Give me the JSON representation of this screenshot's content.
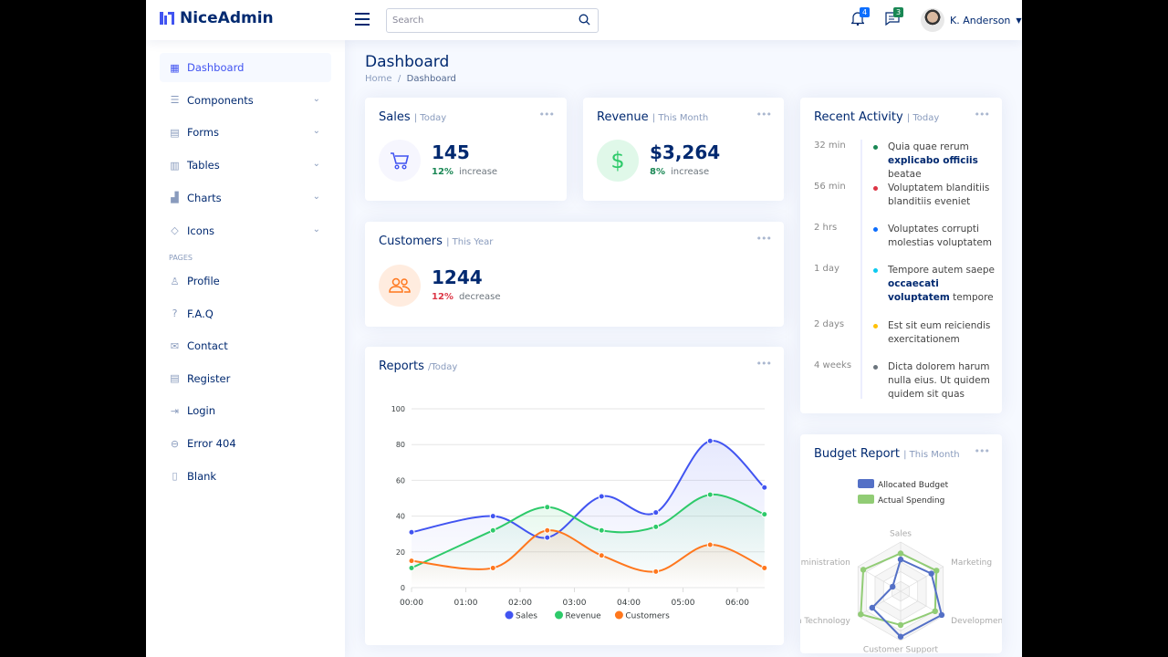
{
  "header": {
    "brand": "NiceAdmin",
    "search_placeholder": "Search",
    "notifications_count": "4",
    "messages_count": "3",
    "user_name": "K. Anderson",
    "colors": {
      "accent": "#4154f1",
      "notif_badge": "#0d6efd",
      "msg_badge": "#198754"
    }
  },
  "sidebar": {
    "items": [
      {
        "label": "Dashboard",
        "icon": "grid-icon",
        "active": true
      },
      {
        "label": "Components",
        "icon": "menu-icon",
        "chevron": true
      },
      {
        "label": "Forms",
        "icon": "journal-icon",
        "chevron": true
      },
      {
        "label": "Tables",
        "icon": "table-icon",
        "chevron": true
      },
      {
        "label": "Charts",
        "icon": "bar-chart-icon",
        "chevron": true
      },
      {
        "label": "Icons",
        "icon": "gem-icon",
        "chevron": true
      }
    ],
    "pages_heading": "PAGES",
    "pages": [
      {
        "label": "Profile",
        "icon": "person-icon"
      },
      {
        "label": "F.A.Q",
        "icon": "question-icon"
      },
      {
        "label": "Contact",
        "icon": "envelope-icon"
      },
      {
        "label": "Register",
        "icon": "card-list-icon"
      },
      {
        "label": "Login",
        "icon": "login-icon"
      },
      {
        "label": "Error 404",
        "icon": "dash-circle-icon"
      },
      {
        "label": "Blank",
        "icon": "file-icon"
      }
    ]
  },
  "page": {
    "title": "Dashboard",
    "breadcrumb": [
      "Home",
      "Dashboard"
    ]
  },
  "sales": {
    "title": "Sales",
    "period": "| Today",
    "value": "145",
    "pct": "12%",
    "trend": "increase"
  },
  "revenue": {
    "title": "Revenue",
    "period": "| This Month",
    "value": "$3,264",
    "pct": "8%",
    "trend": "increase"
  },
  "customers": {
    "title": "Customers",
    "period": "| This Year",
    "value": "1244",
    "pct": "12%",
    "trend": "decrease"
  },
  "activity": {
    "title": "Recent Activity",
    "period": "| Today",
    "items": [
      {
        "time": "32 min",
        "color": "#198754",
        "pre": "Quia quae rerum ",
        "bold": "explicabo officiis",
        "post": " beatae"
      },
      {
        "time": "56 min",
        "color": "#dc3545",
        "pre": "Voluptatem blanditiis blanditiis eveniet",
        "bold": "",
        "post": ""
      },
      {
        "time": "2 hrs",
        "color": "#0d6efd",
        "pre": "Voluptates corrupti molestias voluptatem",
        "bold": "",
        "post": ""
      },
      {
        "time": "1 day",
        "color": "#0dcaf0",
        "pre": "Tempore autem saepe ",
        "bold": "occaecati voluptatem",
        "post": " tempore"
      },
      {
        "time": "2 days",
        "color": "#ffc107",
        "pre": "Est sit eum reiciendis exercitationem",
        "bold": "",
        "post": ""
      },
      {
        "time": "4 weeks",
        "color": "#6c757d",
        "pre": "Dicta dolorem harum nulla eius. Ut quidem quidem sit quas",
        "bold": "",
        "post": ""
      }
    ]
  },
  "reports": {
    "title": "Reports",
    "period": "/Today"
  },
  "budget": {
    "title": "Budget Report",
    "period": "| This Month"
  },
  "chart_data": [
    {
      "type": "line",
      "x": [
        0,
        1.5,
        2.5,
        3.5,
        4.5,
        5.5,
        6.5
      ],
      "xticks": [
        "00:00",
        "01:00",
        "02:00",
        "03:00",
        "04:00",
        "05:00",
        "06:00"
      ],
      "yticks": [
        0,
        20,
        40,
        60,
        80,
        100
      ],
      "ylim": [
        0,
        100
      ],
      "grid": true,
      "legend": "bottom",
      "series": [
        {
          "name": "Sales",
          "color": "#4154f1",
          "values": [
            31,
            40,
            28,
            51,
            42,
            82,
            56
          ]
        },
        {
          "name": "Revenue",
          "color": "#2eca6a",
          "values": [
            11,
            32,
            45,
            32,
            34,
            52,
            41
          ]
        },
        {
          "name": "Customers",
          "color": "#ff771d",
          "values": [
            15,
            11,
            32,
            18,
            9,
            24,
            11
          ]
        }
      ]
    },
    {
      "type": "radar",
      "legend": "top",
      "indicators": [
        {
          "name": "Sales",
          "max": 6500
        },
        {
          "name": "Administration",
          "max": 16000
        },
        {
          "name": "Information Technology",
          "max": 30000
        },
        {
          "name": "Customer Support",
          "max": 38000
        },
        {
          "name": "Development",
          "max": 52000
        },
        {
          "name": "Marketing",
          "max": 25000
        }
      ],
      "series": [
        {
          "name": "Allocated Budget",
          "color": "#5470c6",
          "values": [
            4200,
            3000,
            20000,
            35000,
            50000,
            18000
          ]
        },
        {
          "name": "Actual Spending",
          "color": "#91cc75",
          "values": [
            5000,
            14000,
            28000,
            26000,
            42000,
            21000
          ]
        }
      ]
    }
  ]
}
